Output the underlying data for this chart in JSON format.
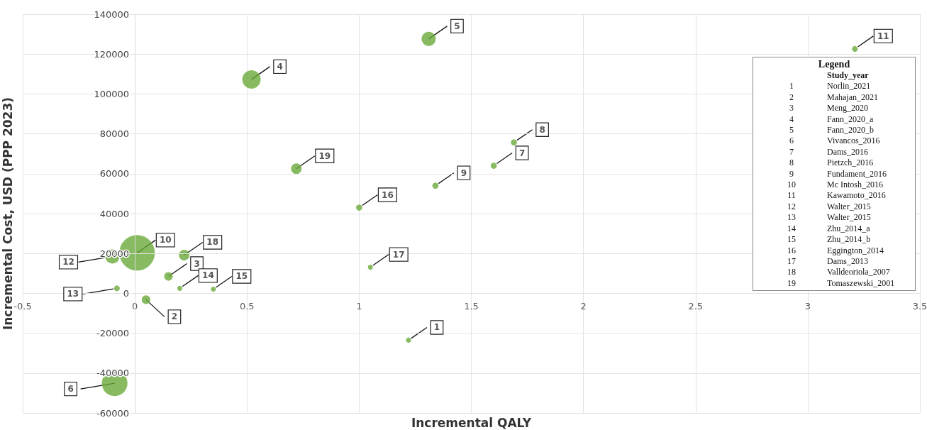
{
  "chart_data": {
    "type": "bubble",
    "xlabel": "Incremental QALY",
    "ylabel": "Incremental Cost, USD (PPP 2023)",
    "xlim": [
      -0.5,
      3.5
    ],
    "xticks": [
      -0.5,
      0,
      0.5,
      1,
      1.5,
      2,
      2.5,
      3,
      3.5
    ],
    "ylim": [
      -60000,
      140000
    ],
    "yticks": [
      -60000,
      -40000,
      -20000,
      0,
      20000,
      40000,
      60000,
      80000,
      100000,
      120000,
      140000
    ],
    "grid": true,
    "legend_title": "Legend",
    "series": [
      {
        "color": "#6aaa3a",
        "x": [
          1.22,
          0.05,
          0.15,
          0.52,
          1.31,
          -0.09,
          1.6,
          1.69,
          1.34,
          0.01,
          3.21,
          -0.1,
          -0.08,
          0.2,
          0.35,
          1.0,
          1.05,
          0.22,
          0.72
        ],
        "values": [
          -23500,
          -3200,
          8500,
          107300,
          127600,
          -45100,
          64000,
          75700,
          54000,
          20300,
          122600,
          18500,
          2500,
          2500,
          2100,
          43000,
          13100,
          19200,
          62500
        ],
        "sizes": [
          0.02,
          0.06,
          0.06,
          0.27,
          0.16,
          0.52,
          0.03,
          0.03,
          0.03,
          1,
          0.026,
          0.16,
          0.026,
          0.02,
          0.02,
          0.03,
          0.02,
          0.09,
          0.09
        ]
      }
    ],
    "annotations": [
      {
        "text": "1",
        "x": 1.22,
        "y": -23500
      },
      {
        "text": "2",
        "x": 0.05,
        "y": -3200
      },
      {
        "text": "3",
        "x": 0.15,
        "y": 8500
      },
      {
        "text": "4",
        "x": 0.52,
        "y": 107300
      },
      {
        "text": "5",
        "x": 1.31,
        "y": 127600
      },
      {
        "text": "6",
        "x": -0.09,
        "y": -45100
      },
      {
        "text": "7",
        "x": 1.6,
        "y": 64000
      },
      {
        "text": "8",
        "x": 1.69,
        "y": 75700
      },
      {
        "text": "9",
        "x": 1.34,
        "y": 54000
      },
      {
        "text": "10",
        "x": 0.01,
        "y": 20300
      },
      {
        "text": "11",
        "x": 3.21,
        "y": 122600
      },
      {
        "text": "12",
        "x": -0.1,
        "y": 18500
      },
      {
        "text": "13",
        "x": -0.08,
        "y": 2500
      },
      {
        "text": "14",
        "x": 0.2,
        "y": 2500
      },
      {
        "text": "15",
        "x": 0.35,
        "y": 2100
      },
      {
        "text": "16",
        "x": 1.0,
        "y": 43000
      },
      {
        "text": "17",
        "x": 1.05,
        "y": 13100
      },
      {
        "text": "18",
        "x": 0.22,
        "y": 19200
      },
      {
        "text": "19",
        "x": 0.72,
        "y": 62500
      },
      "Study_year",
      "1 Norlin_2021",
      "2 Mahajan_2021",
      "3 Meng_2020",
      "4 Fann_2020_a",
      "5 Fann_2020_b",
      "6 Vivancos_2016",
      "7 Dams_2016",
      "8 Pietzch_2016",
      "9 Fundament_2016",
      "10 Mc Intosh_2016",
      "11 Kawamoto_2016",
      "12 Walter_2015",
      "13 Walter_2015",
      "14 Zhu_2014_a",
      "15 Zhu_2014_b",
      "16 Eggington_2014",
      "17 Dams_2013",
      "18 Valldeoriola_2007",
      "19 Tomaszewski_2001"
    ]
  }
}
